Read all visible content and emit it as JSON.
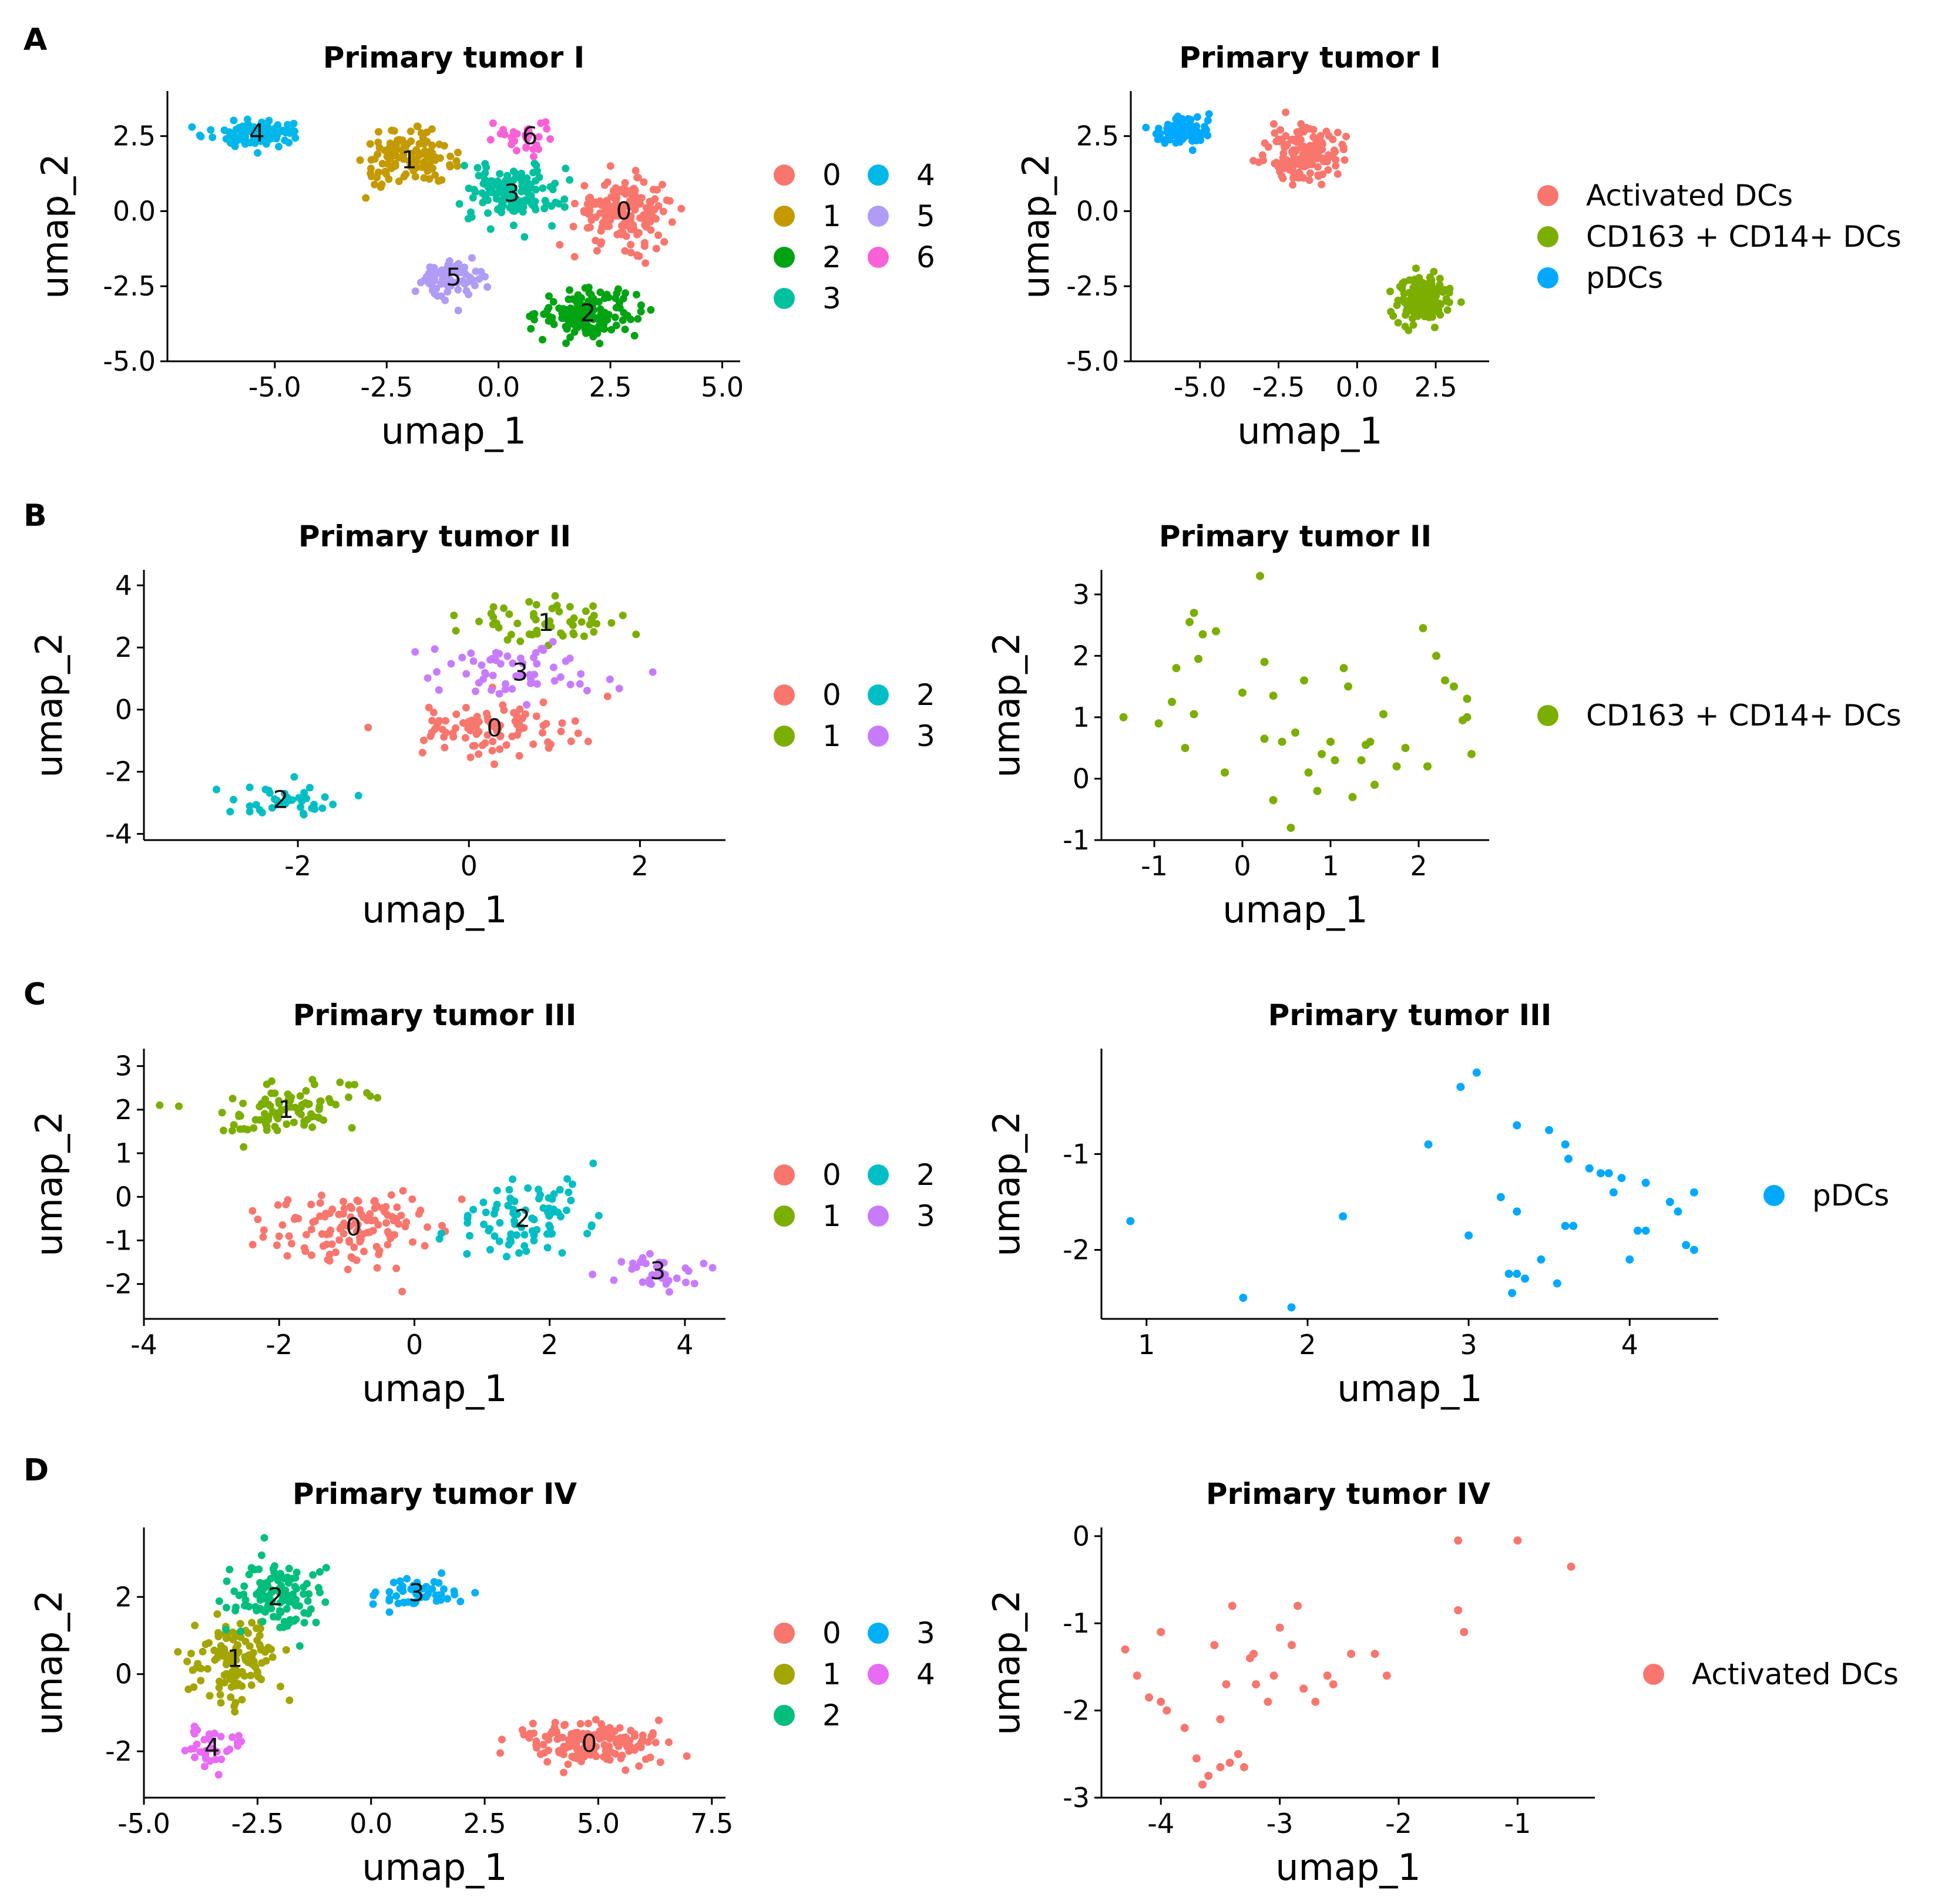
{
  "figure": {
    "panels": [
      {
        "letter": "A"
      },
      {
        "letter": "B"
      },
      {
        "letter": "C"
      },
      {
        "letter": "D"
      }
    ]
  },
  "chart_data": [
    {
      "id": "A-left",
      "type": "scatter",
      "panel": "A",
      "title": "Primary tumor I",
      "xlabel": "umap_1",
      "ylabel": "umap_2",
      "xlim": [
        -7.4,
        5.4
      ],
      "ylim": [
        -5.0,
        4.0
      ],
      "xticks": [
        -5.0,
        -2.5,
        0.0,
        2.5,
        5.0
      ],
      "xtick_labels": [
        "-5.0",
        "-2.5",
        "0.0",
        "2.5",
        "5.0"
      ],
      "yticks": [
        -5.0,
        -2.5,
        0.0,
        2.5
      ],
      "ytick_labels": [
        "-5.0",
        "-2.5",
        "0.0",
        "2.5"
      ],
      "legend": [
        {
          "label": "0",
          "color": "#F8766D"
        },
        {
          "label": "1",
          "color": "#C49A00"
        },
        {
          "label": "2",
          "color": "#00A312"
        },
        {
          "label": "3",
          "color": "#00C19F"
        },
        {
          "label": "4",
          "color": "#00B7E9"
        },
        {
          "label": "5",
          "color": "#B09CF5"
        },
        {
          "label": "6",
          "color": "#FB61D7"
        }
      ],
      "legend_columns": 2,
      "clusters": [
        {
          "label": "0",
          "center": [
            2.8,
            0.0
          ],
          "sx": 1.0,
          "sy": 1.0,
          "n": 170
        },
        {
          "label": "1",
          "center": [
            -2.0,
            1.7
          ],
          "sx": 0.9,
          "sy": 0.8,
          "n": 130
        },
        {
          "label": "2",
          "center": [
            2.0,
            -3.4
          ],
          "sx": 1.0,
          "sy": 0.7,
          "n": 150
        },
        {
          "label": "3",
          "center": [
            0.3,
            0.6
          ],
          "sx": 1.0,
          "sy": 0.9,
          "n": 140
        },
        {
          "label": "4",
          "center": [
            -5.4,
            2.6
          ],
          "sx": 0.9,
          "sy": 0.4,
          "n": 100
        },
        {
          "label": "5",
          "center": [
            -1.0,
            -2.2
          ],
          "sx": 0.7,
          "sy": 0.6,
          "n": 80
        },
        {
          "label": "6",
          "center": [
            0.7,
            2.5
          ],
          "sx": 0.5,
          "sy": 0.5,
          "n": 30
        }
      ]
    },
    {
      "id": "A-right",
      "type": "scatter",
      "panel": "A",
      "title": "Primary tumor I",
      "xlabel": "umap_1",
      "ylabel": "umap_2",
      "xlim": [
        -7.2,
        4.2
      ],
      "ylim": [
        -5.0,
        4.0
      ],
      "xticks": [
        -5.0,
        -2.5,
        0.0,
        2.5
      ],
      "xtick_labels": [
        "-5.0",
        "-2.5",
        "0.0",
        "2.5"
      ],
      "yticks": [
        -5.0,
        -2.5,
        0.0,
        2.5
      ],
      "ytick_labels": [
        "-5.0",
        "-2.5",
        "0.0",
        "2.5"
      ],
      "legend": [
        {
          "label": "Activated DCs",
          "color": "#F8766D"
        },
        {
          "label": "CD163 + CD14+ DCs",
          "color": "#7CAE00"
        },
        {
          "label": "pDCs",
          "color": "#00A9FF"
        }
      ],
      "legend_columns": 1,
      "clusters": [
        {
          "label": "Activated DCs",
          "center": [
            -1.7,
            1.9
          ],
          "sx": 1.0,
          "sy": 0.8,
          "n": 160
        },
        {
          "label": "pDCs",
          "center": [
            -5.6,
            2.7
          ],
          "sx": 0.8,
          "sy": 0.4,
          "n": 100
        },
        {
          "label": "CD163 + CD14+ DCs",
          "center": [
            2.1,
            -2.9
          ],
          "sx": 0.7,
          "sy": 0.7,
          "n": 170
        }
      ]
    },
    {
      "id": "B-left",
      "type": "scatter",
      "panel": "B",
      "title": "Primary tumor II",
      "xlabel": "umap_1",
      "ylabel": "umap_2",
      "xlim": [
        -3.8,
        3.0
      ],
      "ylim": [
        -4.2,
        4.5
      ],
      "xticks": [
        -2,
        0,
        2
      ],
      "xtick_labels": [
        "-2",
        "0",
        "2"
      ],
      "yticks": [
        -4,
        -2,
        0,
        2,
        4
      ],
      "ytick_labels": [
        "-4",
        "-2",
        "0",
        "2",
        "4"
      ],
      "legend": [
        {
          "label": "0",
          "color": "#F8766D"
        },
        {
          "label": "1",
          "color": "#7CAE00"
        },
        {
          "label": "2",
          "color": "#00BFC4"
        },
        {
          "label": "3",
          "color": "#C77CFF"
        }
      ],
      "legend_columns": 2,
      "clusters": [
        {
          "label": "0",
          "center": [
            0.3,
            -0.6
          ],
          "sx": 1.0,
          "sy": 0.8,
          "n": 95
        },
        {
          "label": "1",
          "center": [
            0.9,
            2.8
          ],
          "sx": 0.9,
          "sy": 0.7,
          "n": 55
        },
        {
          "label": "2",
          "center": [
            -2.2,
            -2.9
          ],
          "sx": 0.7,
          "sy": 0.5,
          "n": 40
        },
        {
          "label": "3",
          "center": [
            0.6,
            1.2
          ],
          "sx": 1.0,
          "sy": 0.8,
          "n": 60
        }
      ]
    },
    {
      "id": "B-right",
      "type": "scatter",
      "panel": "B",
      "title": "Primary tumor II",
      "xlabel": "umap_1",
      "ylabel": "umap_2",
      "xlim": [
        -1.6,
        2.8
      ],
      "ylim": [
        -1.0,
        3.4
      ],
      "xticks": [
        -1,
        0,
        1,
        2
      ],
      "xtick_labels": [
        "-1",
        "0",
        "1",
        "2"
      ],
      "yticks": [
        -1,
        0,
        1,
        2,
        3
      ],
      "ytick_labels": [
        "-1",
        "0",
        "1",
        "2",
        "3"
      ],
      "legend": [
        {
          "label": "CD163 + CD14+ DCs",
          "color": "#7CAE00"
        }
      ],
      "legend_columns": 1,
      "points": [
        [
          -1.35,
          1.0
        ],
        [
          -0.95,
          0.9
        ],
        [
          -0.8,
          1.25
        ],
        [
          -0.75,
          1.8
        ],
        [
          -0.65,
          0.5
        ],
        [
          -0.55,
          1.05
        ],
        [
          -0.55,
          2.7
        ],
        [
          -0.6,
          2.55
        ],
        [
          -0.5,
          1.95
        ],
        [
          -0.45,
          2.35
        ],
        [
          -0.3,
          2.4
        ],
        [
          -0.2,
          0.1
        ],
        [
          0.0,
          1.4
        ],
        [
          0.2,
          3.3
        ],
        [
          0.25,
          0.65
        ],
        [
          0.25,
          1.9
        ],
        [
          0.35,
          -0.35
        ],
        [
          0.35,
          1.35
        ],
        [
          0.45,
          0.6
        ],
        [
          0.55,
          -0.8
        ],
        [
          0.6,
          0.75
        ],
        [
          0.7,
          1.6
        ],
        [
          0.75,
          0.1
        ],
        [
          0.85,
          -0.2
        ],
        [
          0.9,
          0.4
        ],
        [
          1.0,
          0.6
        ],
        [
          1.05,
          0.3
        ],
        [
          1.15,
          1.8
        ],
        [
          1.2,
          1.5
        ],
        [
          1.25,
          -0.3
        ],
        [
          1.35,
          0.3
        ],
        [
          1.4,
          0.55
        ],
        [
          1.45,
          0.6
        ],
        [
          1.5,
          -0.1
        ],
        [
          1.6,
          1.05
        ],
        [
          1.75,
          0.2
        ],
        [
          1.85,
          0.5
        ],
        [
          2.05,
          2.45
        ],
        [
          2.1,
          0.2
        ],
        [
          2.2,
          2.0
        ],
        [
          2.3,
          1.6
        ],
        [
          2.4,
          1.5
        ],
        [
          2.5,
          0.95
        ],
        [
          2.55,
          1.0
        ],
        [
          2.55,
          1.3
        ],
        [
          2.6,
          0.4
        ]
      ]
    },
    {
      "id": "C-left",
      "type": "scatter",
      "panel": "C",
      "title": "Primary tumor III",
      "xlabel": "umap_1",
      "ylabel": "umap_2",
      "xlim": [
        -4.0,
        4.6
      ],
      "ylim": [
        -2.8,
        3.4
      ],
      "xticks": [
        -4,
        -2,
        0,
        2,
        4
      ],
      "xtick_labels": [
        "-4",
        "-2",
        "0",
        "2",
        "4"
      ],
      "yticks": [
        -2,
        -1,
        0,
        1,
        2,
        3
      ],
      "ytick_labels": [
        "-2",
        "-1",
        "0",
        "1",
        "2",
        "3"
      ],
      "legend": [
        {
          "label": "0",
          "color": "#F8766D"
        },
        {
          "label": "1",
          "color": "#7CAE00"
        },
        {
          "label": "2",
          "color": "#00BFC4"
        },
        {
          "label": "3",
          "color": "#C77CFF"
        }
      ],
      "legend_columns": 2,
      "clusters": [
        {
          "label": "0",
          "center": [
            -0.9,
            -0.7
          ],
          "sx": 1.1,
          "sy": 0.8,
          "n": 130
        },
        {
          "label": "1",
          "center": [
            -1.9,
            2.0
          ],
          "sx": 1.0,
          "sy": 0.6,
          "n": 90
        },
        {
          "label": "2",
          "center": [
            1.6,
            -0.5
          ],
          "sx": 0.9,
          "sy": 0.8,
          "n": 85
        },
        {
          "label": "3",
          "center": [
            3.6,
            -1.7
          ],
          "sx": 0.5,
          "sy": 0.4,
          "n": 35
        }
      ]
    },
    {
      "id": "C-right",
      "type": "scatter",
      "panel": "C",
      "title": "Primary tumor III",
      "xlabel": "umap_1",
      "ylabel": "umap_2",
      "xlim": [
        0.72,
        4.55
      ],
      "ylim": [
        -2.72,
        0.1
      ],
      "xticks": [
        1,
        2,
        3,
        4
      ],
      "xtick_labels": [
        "1",
        "2",
        "3",
        "4"
      ],
      "yticks": [
        -2,
        -1
      ],
      "ytick_labels": [
        "-2",
        "-1"
      ],
      "legend": [
        {
          "label": "pDCs",
          "color": "#00A9FF"
        }
      ],
      "legend_columns": 1,
      "points": [
        [
          0.9,
          -1.7
        ],
        [
          1.6,
          -2.5
        ],
        [
          1.9,
          -2.6
        ],
        [
          2.22,
          -1.65
        ],
        [
          2.75,
          -0.9
        ],
        [
          2.95,
          -0.3
        ],
        [
          3.05,
          -0.15
        ],
        [
          3.0,
          -1.85
        ],
        [
          3.2,
          -1.45
        ],
        [
          3.25,
          -2.25
        ],
        [
          3.3,
          -2.25
        ],
        [
          3.27,
          -2.45
        ],
        [
          3.3,
          -0.7
        ],
        [
          3.3,
          -1.6
        ],
        [
          3.35,
          -2.3
        ],
        [
          3.45,
          -2.1
        ],
        [
          3.5,
          -0.75
        ],
        [
          3.55,
          -2.35
        ],
        [
          3.6,
          -0.9
        ],
        [
          3.6,
          -1.75
        ],
        [
          3.62,
          -1.05
        ],
        [
          3.65,
          -1.75
        ],
        [
          3.75,
          -1.15
        ],
        [
          3.82,
          -1.2
        ],
        [
          3.87,
          -1.2
        ],
        [
          3.9,
          -1.4
        ],
        [
          3.95,
          -1.25
        ],
        [
          4.0,
          -2.1
        ],
        [
          4.05,
          -1.8
        ],
        [
          4.1,
          -1.3
        ],
        [
          4.1,
          -1.8
        ],
        [
          4.25,
          -1.5
        ],
        [
          4.3,
          -1.6
        ],
        [
          4.35,
          -1.95
        ],
        [
          4.4,
          -1.4
        ],
        [
          4.4,
          -2.0
        ]
      ]
    },
    {
      "id": "D-left",
      "type": "scatter",
      "panel": "D",
      "title": "Primary tumor IV",
      "xlabel": "umap_1",
      "ylabel": "umap_2",
      "xlim": [
        -5.0,
        7.8
      ],
      "ylim": [
        -3.2,
        3.8
      ],
      "xticks": [
        -5.0,
        -2.5,
        0.0,
        2.5,
        5.0,
        7.5
      ],
      "xtick_labels": [
        "-5.0",
        "-2.5",
        "0.0",
        "2.5",
        "5.0",
        "7.5"
      ],
      "yticks": [
        -2,
        0,
        2
      ],
      "ytick_labels": [
        "-2",
        "0",
        "2"
      ],
      "legend": [
        {
          "label": "0",
          "color": "#F8766D"
        },
        {
          "label": "1",
          "color": "#A3A500"
        },
        {
          "label": "2",
          "color": "#00BF7D"
        },
        {
          "label": "3",
          "color": "#00B0F6"
        },
        {
          "label": "4",
          "color": "#E76BF3"
        }
      ],
      "legend_columns": 2,
      "clusters": [
        {
          "label": "0",
          "center": [
            4.8,
            -1.8
          ],
          "sx": 1.4,
          "sy": 0.5,
          "n": 150
        },
        {
          "label": "1",
          "center": [
            -3.0,
            0.4
          ],
          "sx": 0.9,
          "sy": 0.9,
          "n": 130
        },
        {
          "label": "2",
          "center": [
            -2.1,
            2.0
          ],
          "sx": 1.0,
          "sy": 0.8,
          "n": 120
        },
        {
          "label": "3",
          "center": [
            1.0,
            2.1
          ],
          "sx": 0.9,
          "sy": 0.4,
          "n": 50
        },
        {
          "label": "4",
          "center": [
            -3.5,
            -1.9
          ],
          "sx": 0.5,
          "sy": 0.6,
          "n": 35
        }
      ]
    },
    {
      "id": "D-right",
      "type": "scatter",
      "panel": "D",
      "title": "Primary tumor IV",
      "xlabel": "umap_1",
      "ylabel": "umap_2",
      "xlim": [
        -4.5,
        -0.35
      ],
      "ylim": [
        -3.0,
        0.1
      ],
      "xticks": [
        -4,
        -3,
        -2,
        -1
      ],
      "xtick_labels": [
        "-4",
        "-3",
        "-2",
        "-1"
      ],
      "yticks": [
        -3,
        -2,
        -1,
        0
      ],
      "ytick_labels": [
        "-3",
        "-2",
        "-1",
        "0"
      ],
      "legend": [
        {
          "label": "Activated DCs",
          "color": "#F8766D"
        }
      ],
      "legend_columns": 1,
      "points": [
        [
          -4.3,
          -1.3
        ],
        [
          -4.2,
          -1.6
        ],
        [
          -4.1,
          -1.85
        ],
        [
          -4.0,
          -1.1
        ],
        [
          -4.0,
          -1.9
        ],
        [
          -3.95,
          -2.0
        ],
        [
          -3.8,
          -2.2
        ],
        [
          -3.7,
          -2.55
        ],
        [
          -3.65,
          -2.85
        ],
        [
          -3.6,
          -2.75
        ],
        [
          -3.55,
          -1.25
        ],
        [
          -3.5,
          -2.1
        ],
        [
          -3.5,
          -2.65
        ],
        [
          -3.45,
          -1.7
        ],
        [
          -3.42,
          -2.6
        ],
        [
          -3.4,
          -0.8
        ],
        [
          -3.35,
          -2.5
        ],
        [
          -3.3,
          -2.65
        ],
        [
          -3.25,
          -1.4
        ],
        [
          -3.22,
          -1.35
        ],
        [
          -3.2,
          -1.7
        ],
        [
          -3.1,
          -1.9
        ],
        [
          -3.05,
          -1.6
        ],
        [
          -3.0,
          -1.05
        ],
        [
          -2.9,
          -1.25
        ],
        [
          -2.85,
          -0.8
        ],
        [
          -2.8,
          -1.75
        ],
        [
          -2.7,
          -1.9
        ],
        [
          -2.6,
          -1.6
        ],
        [
          -2.55,
          -1.7
        ],
        [
          -2.4,
          -1.35
        ],
        [
          -2.2,
          -1.35
        ],
        [
          -2.1,
          -1.6
        ],
        [
          -1.5,
          -0.05
        ],
        [
          -1.5,
          -0.85
        ],
        [
          -1.45,
          -1.1
        ],
        [
          -1.0,
          -0.05
        ],
        [
          -0.55,
          -0.35
        ]
      ]
    }
  ]
}
